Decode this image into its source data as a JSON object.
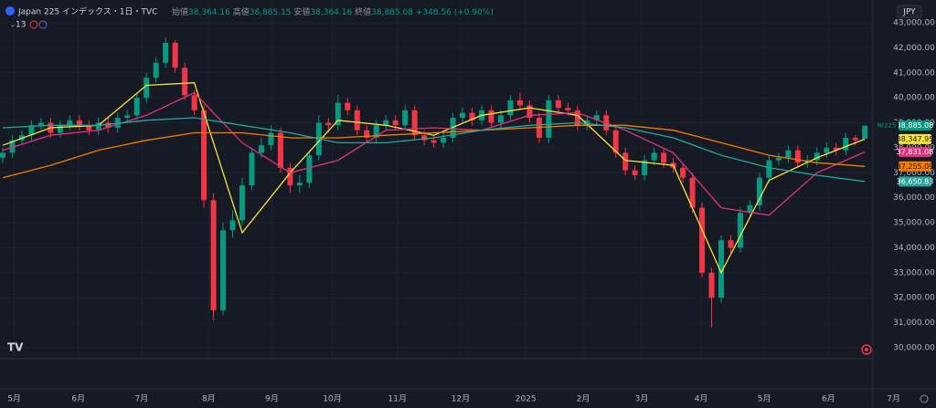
{
  "header": {
    "symbol": "Japan 225 インデックス・1日・TVC",
    "ohlc": [
      {
        "label": "始値",
        "value": "38,364.16"
      },
      {
        "label": "高値",
        "value": "38,885.15"
      },
      {
        "label": "安値",
        "value": "38,364.16"
      },
      {
        "label": "終値",
        "value": "38,885.08"
      }
    ],
    "change": "+348.56 (+0.90%)",
    "indicator_count": "13",
    "currency": "JPY"
  },
  "chart_data": {
    "type": "candlestick",
    "symbol_label": "NI225",
    "up_color": "#089981",
    "down_color": "#f23645",
    "grid": true,
    "open": [
      37600,
      37800,
      38300,
      38500,
      38900,
      39000,
      38600,
      38900,
      39100,
      38900,
      38700,
      39000,
      38800,
      39200,
      39300,
      40000,
      40800,
      41400,
      42200,
      41200,
      40100,
      39500,
      35900,
      31500,
      34700,
      35100,
      36500,
      37800,
      38100,
      38600,
      37200,
      36500,
      36600,
      37700,
      39000,
      38900,
      39800,
      39500,
      38700,
      38400,
      38900,
      39100,
      38900,
      39500,
      38500,
      38300,
      38200,
      38400,
      39200,
      39400,
      39100,
      39500,
      39000,
      39300,
      39900,
      39700,
      39200,
      38400,
      39900,
      39600,
      39500,
      38900,
      39100,
      39300,
      38700,
      37800,
      37100,
      36900,
      37500,
      37800,
      37400,
      37200,
      36800,
      35600,
      33000,
      32000,
      34300,
      34000,
      35400,
      35700,
      36800,
      37500,
      37600,
      37900,
      37400,
      37500,
      37800,
      38000,
      37900,
      38400,
      38364.16
    ],
    "high": [
      38000,
      38500,
      38700,
      39100,
      39200,
      39200,
      39100,
      39300,
      39300,
      39100,
      39200,
      39200,
      39400,
      39500,
      40200,
      41000,
      41600,
      42400,
      42300,
      41400,
      40300,
      39700,
      36200,
      35000,
      35500,
      36800,
      38000,
      38400,
      38900,
      38800,
      37400,
      36900,
      37900,
      39300,
      39200,
      40100,
      40000,
      39700,
      38900,
      39100,
      39300,
      39300,
      39700,
      39700,
      38700,
      38500,
      38600,
      39400,
      39600,
      39600,
      39700,
      39700,
      39500,
      40100,
      40200,
      39900,
      39400,
      40100,
      40100,
      39800,
      39700,
      39300,
      39500,
      39500,
      38900,
      38000,
      37300,
      37700,
      38000,
      38000,
      37600,
      37400,
      37000,
      35800,
      33200,
      34500,
      34500,
      35600,
      35900,
      37000,
      37700,
      37800,
      38100,
      38100,
      37700,
      38000,
      38200,
      38200,
      38600,
      38500,
      38885.15
    ],
    "low": [
      37400,
      37600,
      38100,
      38300,
      38700,
      38400,
      38400,
      38700,
      38700,
      38500,
      38500,
      38600,
      38600,
      39000,
      39100,
      39800,
      40600,
      41200,
      41000,
      39900,
      39300,
      35600,
      31100,
      31300,
      34400,
      34900,
      36300,
      37600,
      37900,
      37000,
      36200,
      36200,
      36400,
      37500,
      38600,
      38700,
      39300,
      38500,
      38200,
      38200,
      38700,
      38700,
      38700,
      38300,
      38100,
      38000,
      38000,
      38200,
      39000,
      38900,
      38900,
      38800,
      38800,
      39100,
      39500,
      39000,
      38200,
      38200,
      39400,
      39300,
      38700,
      38700,
      38900,
      38500,
      37600,
      36900,
      36700,
      36700,
      37300,
      37200,
      37000,
      36600,
      35400,
      32800,
      30800,
      31800,
      33800,
      33800,
      35200,
      35500,
      36600,
      37300,
      37400,
      37200,
      37200,
      37300,
      37600,
      37700,
      37700,
      38100,
      38364.16
    ],
    "close": [
      37800,
      38300,
      38500,
      38900,
      39000,
      38600,
      38900,
      39100,
      38900,
      38700,
      39000,
      38800,
      39200,
      39300,
      40000,
      40800,
      41400,
      42200,
      41200,
      40100,
      39500,
      35900,
      31500,
      34700,
      35100,
      36500,
      37800,
      38100,
      38600,
      37200,
      36500,
      36600,
      37700,
      39000,
      38900,
      39800,
      39500,
      38700,
      38400,
      38900,
      39100,
      38900,
      39500,
      38500,
      38300,
      38200,
      38400,
      39200,
      39400,
      39100,
      39500,
      39000,
      39300,
      39900,
      39700,
      39200,
      38400,
      39900,
      39600,
      39500,
      38900,
      39100,
      39300,
      38700,
      37800,
      37100,
      36900,
      37500,
      37800,
      37400,
      37200,
      36800,
      35600,
      33000,
      32000,
      34300,
      34000,
      35400,
      35700,
      36800,
      37500,
      37600,
      37900,
      37400,
      37500,
      37800,
      38000,
      37900,
      38400,
      38300,
      38885.08
    ],
    "close_last_label": "38,885.08",
    "series": [
      {
        "color": "#f7e43a",
        "x": [
          0,
          5,
          10,
          15,
          20,
          25,
          30,
          35,
          40,
          45,
          50,
          55,
          60,
          65,
          70,
          75,
          80,
          85,
          90
        ],
        "values": [
          38100,
          38800,
          38900,
          40500,
          40600,
          34600,
          37000,
          39100,
          38900,
          38500,
          39300,
          39600,
          39300,
          37500,
          37300,
          33000,
          36700,
          37600,
          38347.95
        ],
        "last_label": "38,347.95"
      },
      {
        "color": "#e0317a",
        "x": [
          0,
          5,
          10,
          15,
          20,
          25,
          30,
          35,
          40,
          45,
          50,
          55,
          60,
          65,
          70,
          75,
          80,
          85,
          90
        ],
        "values": [
          37900,
          38500,
          38700,
          39300,
          40200,
          38200,
          37000,
          37500,
          38700,
          38800,
          38700,
          39300,
          39400,
          38700,
          37800,
          35600,
          35300,
          37000,
          37831.08
        ],
        "last_label": "37,831.08"
      },
      {
        "color": "#f57c00",
        "x": [
          0,
          5,
          10,
          15,
          20,
          25,
          30,
          35,
          40,
          45,
          50,
          55,
          60,
          65,
          70,
          75,
          80,
          85,
          90
        ],
        "values": [
          36800,
          37300,
          37900,
          38300,
          38600,
          38600,
          38400,
          38400,
          38500,
          38600,
          38700,
          38800,
          38900,
          38900,
          38700,
          38200,
          37700,
          37400,
          37255.09
        ],
        "last_label": "37,255.09"
      },
      {
        "color": "#26a69a",
        "x": [
          0,
          5,
          10,
          15,
          20,
          25,
          30,
          35,
          40,
          45,
          50,
          55,
          60,
          65,
          70,
          75,
          80,
          85,
          90
        ],
        "values": [
          38800,
          38900,
          38900,
          39100,
          39200,
          38900,
          38600,
          38200,
          38200,
          38400,
          38700,
          38900,
          39000,
          38800,
          38400,
          37700,
          37200,
          36900,
          36650.83
        ],
        "last_label": "36,650.83"
      }
    ],
    "xlim": [
      -0.286,
      90.84
    ],
    "xticks": [
      {
        "value": 1.2,
        "label": "5月"
      },
      {
        "value": 7.9,
        "label": "6月"
      },
      {
        "value": 14.5,
        "label": "7月"
      },
      {
        "value": 21.5,
        "label": "8月"
      },
      {
        "value": 28.1,
        "label": "9月"
      },
      {
        "value": 34.4,
        "label": "10月"
      },
      {
        "value": 41.2,
        "label": "11月"
      },
      {
        "value": 47.8,
        "label": "12月"
      },
      {
        "value": 54.6,
        "label": "2025"
      },
      {
        "value": 60.6,
        "label": "2月"
      },
      {
        "value": 66.7,
        "label": "3月"
      },
      {
        "value": 72.9,
        "label": "4月"
      },
      {
        "value": 79.5,
        "label": "5月"
      },
      {
        "value": 86.2,
        "label": "6月"
      },
      {
        "value": 93.0,
        "label": "7月"
      }
    ],
    "ylim": [
      29560,
      43913
    ],
    "yticks": [
      {
        "value": 30000,
        "label": "30,000.00"
      },
      {
        "value": 31000,
        "label": "31,000.00"
      },
      {
        "value": 32000,
        "label": "32,000.00"
      },
      {
        "value": 33000,
        "label": "33,000.00"
      },
      {
        "value": 34000,
        "label": "34,000.00"
      },
      {
        "value": 35000,
        "label": "35,000.00"
      },
      {
        "value": 36000,
        "label": "36,000.00"
      },
      {
        "value": 37000,
        "label": "37,000.00"
      },
      {
        "value": 38000,
        "label": "38,000.00"
      },
      {
        "value": 39000,
        "label": "39,000.00"
      },
      {
        "value": 40000,
        "label": "40,000.00"
      },
      {
        "value": 41000,
        "label": "41,000.00"
      },
      {
        "value": 42000,
        "label": "42,000.00"
      },
      {
        "value": 43000,
        "label": "43,000.00"
      }
    ]
  }
}
